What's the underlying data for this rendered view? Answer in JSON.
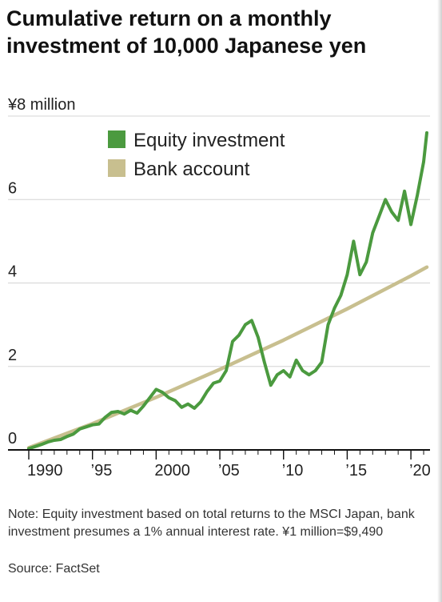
{
  "header": {
    "title": "Cumulative return on a monthly investment of 10,000 Japanese yen"
  },
  "footer": {
    "note": "Note: Equity investment based on total returns to the MSCI Japan, bank investment presumes a 1% annual interest rate. ¥1 million=$9,490",
    "source": "Source: FactSet"
  },
  "chart_data": {
    "type": "line",
    "title": "Cumulative return on a monthly investment of 10,000 Japanese yen",
    "ylabel": "",
    "xlabel": "",
    "xlim": [
      1990,
      2021.5
    ],
    "ylim": [
      0,
      8
    ],
    "grid": true,
    "legend_position": "top-center",
    "x_ticks": [
      {
        "value": 1990,
        "label": "1990"
      },
      {
        "value": 1995,
        "label": "’95"
      },
      {
        "value": 2000,
        "label": "2000"
      },
      {
        "value": 2005,
        "label": "’05"
      },
      {
        "value": 2010,
        "label": "’10"
      },
      {
        "value": 2015,
        "label": "’15"
      },
      {
        "value": 2020,
        "label": "’20"
      }
    ],
    "y_ticks": [
      {
        "value": 0,
        "label": "0"
      },
      {
        "value": 2,
        "label": "2"
      },
      {
        "value": 4,
        "label": "4"
      },
      {
        "value": 6,
        "label": "6"
      },
      {
        "value": 8,
        "label": "¥8 million"
      }
    ],
    "series": [
      {
        "name": "Equity investment",
        "color": "#4b9a3f",
        "x": [
          1990.0,
          1990.5,
          1991.0,
          1991.5,
          1992.0,
          1992.5,
          1993.0,
          1993.5,
          1994.0,
          1994.5,
          1995.0,
          1995.5,
          1996.0,
          1996.5,
          1997.0,
          1997.5,
          1998.0,
          1998.5,
          1999.0,
          1999.5,
          2000.0,
          2000.5,
          2001.0,
          2001.5,
          2002.0,
          2002.5,
          2003.0,
          2003.5,
          2004.0,
          2004.5,
          2005.0,
          2005.5,
          2006.0,
          2006.5,
          2007.0,
          2007.5,
          2008.0,
          2008.5,
          2009.0,
          2009.5,
          2010.0,
          2010.5,
          2011.0,
          2011.5,
          2012.0,
          2012.5,
          2013.0,
          2013.5,
          2014.0,
          2014.5,
          2015.0,
          2015.5,
          2016.0,
          2016.5,
          2017.0,
          2017.5,
          2018.0,
          2018.5,
          2019.0,
          2019.5,
          2020.0,
          2020.5,
          2021.0,
          2021.25
        ],
        "values": [
          0.03,
          0.08,
          0.13,
          0.19,
          0.23,
          0.25,
          0.32,
          0.38,
          0.5,
          0.55,
          0.6,
          0.62,
          0.78,
          0.9,
          0.92,
          0.86,
          0.95,
          0.88,
          1.05,
          1.25,
          1.45,
          1.38,
          1.25,
          1.18,
          1.02,
          1.1,
          1.0,
          1.15,
          1.4,
          1.6,
          1.65,
          1.9,
          2.6,
          2.75,
          3.0,
          3.1,
          2.7,
          2.1,
          1.55,
          1.8,
          1.9,
          1.75,
          2.15,
          1.9,
          1.8,
          1.9,
          2.1,
          3.0,
          3.4,
          3.7,
          4.2,
          5.0,
          4.2,
          4.5,
          5.2,
          5.6,
          6.0,
          5.7,
          5.5,
          6.2,
          5.4,
          6.1,
          6.9,
          7.6
        ]
      },
      {
        "name": "Bank account",
        "color": "#c8bf8f",
        "x": [
          1990.0,
          1995.0,
          2000.0,
          2005.0,
          2010.0,
          2015.0,
          2020.0,
          2021.25
        ],
        "values": [
          0.05,
          0.63,
          1.26,
          1.93,
          2.63,
          3.38,
          4.17,
          4.38
        ]
      }
    ]
  }
}
